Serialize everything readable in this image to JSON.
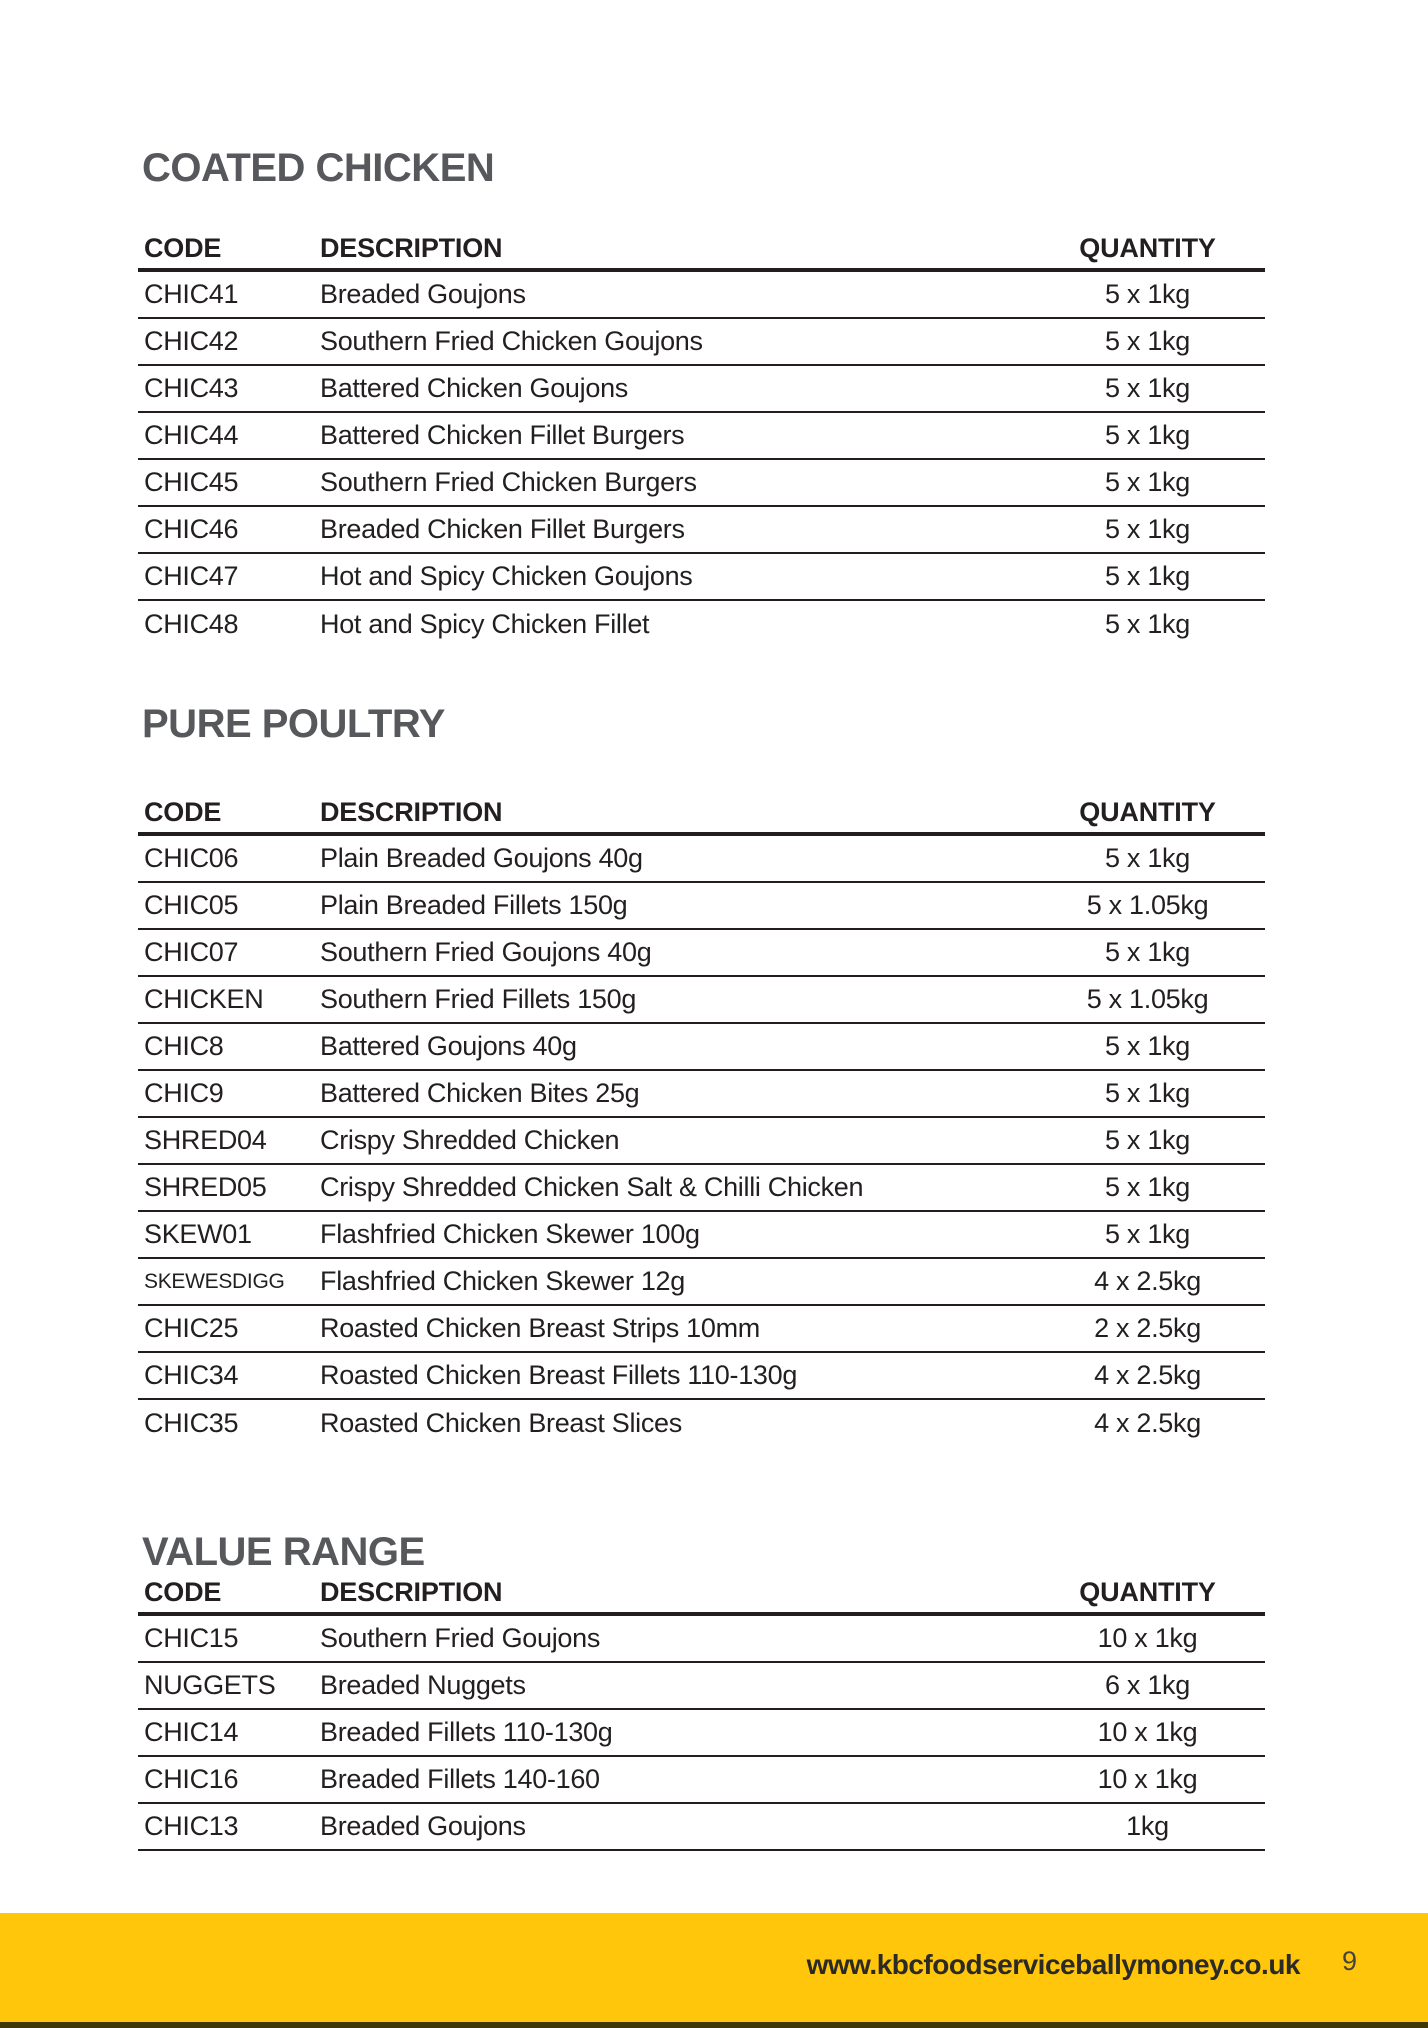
{
  "sections": [
    {
      "title": "COATED CHICKEN",
      "columns": [
        "CODE",
        "DESCRIPTION",
        "QUANTITY"
      ],
      "rows": [
        {
          "code": "CHIC41",
          "description": "Breaded Goujons",
          "quantity": "5 x 1kg"
        },
        {
          "code": "CHIC42",
          "description": "Southern Fried Chicken Goujons",
          "quantity": "5 x 1kg"
        },
        {
          "code": "CHIC43",
          "description": "Battered Chicken Goujons",
          "quantity": "5 x 1kg"
        },
        {
          "code": "CHIC44",
          "description": "Battered Chicken Fillet Burgers",
          "quantity": "5 x 1kg"
        },
        {
          "code": "CHIC45",
          "description": "Southern Fried Chicken Burgers",
          "quantity": "5 x 1kg"
        },
        {
          "code": "CHIC46",
          "description": "Breaded Chicken Fillet Burgers",
          "quantity": "5 x 1kg"
        },
        {
          "code": "CHIC47",
          "description": "Hot and Spicy Chicken Goujons",
          "quantity": "5 x 1kg"
        },
        {
          "code": "CHIC48",
          "description": "Hot and Spicy Chicken Fillet",
          "quantity": "5 x 1kg"
        }
      ]
    },
    {
      "title": "PURE POULTRY",
      "columns": [
        "CODE",
        "DESCRIPTION",
        "QUANTITY"
      ],
      "rows": [
        {
          "code": "CHIC06",
          "description": "Plain Breaded Goujons 40g",
          "quantity": "5 x 1kg"
        },
        {
          "code": "CHIC05",
          "description": "Plain Breaded Fillets 150g",
          "quantity": "5 x 1.05kg"
        },
        {
          "code": "CHIC07",
          "description": "Southern Fried Goujons 40g",
          "quantity": "5 x 1kg"
        },
        {
          "code": "CHICKEN",
          "description": "Southern Fried Fillets 150g",
          "quantity": "5 x 1.05kg"
        },
        {
          "code": "CHIC8",
          "description": "Battered Goujons 40g",
          "quantity": "5 x 1kg"
        },
        {
          "code": "CHIC9",
          "description": "Battered Chicken Bites 25g",
          "quantity": "5 x 1kg"
        },
        {
          "code": "SHRED04",
          "description": "Crispy Shredded Chicken",
          "quantity": "5 x 1kg"
        },
        {
          "code": "SHRED05",
          "description": "Crispy Shredded Chicken Salt & Chilli Chicken",
          "quantity": "5 x 1kg"
        },
        {
          "code": "SKEW01",
          "description": "Flashfried Chicken Skewer 100g",
          "quantity": "5 x 1kg"
        },
        {
          "code": "SKEWESDIGG",
          "description": "Flashfried Chicken Skewer 12g",
          "quantity": "4 x 2.5kg"
        },
        {
          "code": "CHIC25",
          "description": "Roasted Chicken Breast Strips 10mm",
          "quantity": "2 x 2.5kg"
        },
        {
          "code": "CHIC34",
          "description": "Roasted Chicken Breast Fillets 110-130g",
          "quantity": "4 x 2.5kg"
        },
        {
          "code": "CHIC35",
          "description": "Roasted Chicken Breast Slices",
          "quantity": "4 x 2.5kg"
        }
      ]
    },
    {
      "title": "VALUE RANGE",
      "columns": [
        "CODE",
        "DESCRIPTION",
        "QUANTITY"
      ],
      "rows": [
        {
          "code": "CHIC15",
          "description": "Southern Fried Goujons",
          "quantity": "10 x 1kg"
        },
        {
          "code": "NUGGETS",
          "description": "Breaded Nuggets",
          "quantity": "6 x 1kg"
        },
        {
          "code": "CHIC14",
          "description": "Breaded Fillets 110-130g",
          "quantity": "10 x 1kg"
        },
        {
          "code": "CHIC16",
          "description": "Breaded Fillets 140-160",
          "quantity": "10 x 1kg"
        },
        {
          "code": "CHIC13",
          "description": "Breaded Goujons",
          "quantity": "1kg"
        }
      ]
    }
  ],
  "footer": {
    "url": "www.kbcfoodserviceballymoney.co.uk",
    "page_number": "9"
  },
  "colors": {
    "accent_yellow": "#ffc60b",
    "heading_gray": "#57585c",
    "text_dark": "#231f20"
  }
}
